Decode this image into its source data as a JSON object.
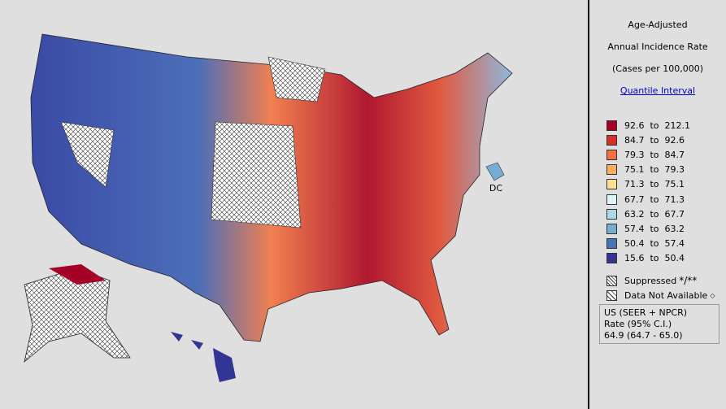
{
  "title_lines": [
    "Age-Adjusted",
    "Annual Incidence Rate",
    "(Cases per 100,000)"
  ],
  "link": "Quantile Interval",
  "dc_label": "DC",
  "legend": [
    {
      "label": "92.6  to  212.1",
      "color": "#a50026"
    },
    {
      "label": "84.7  to  92.6",
      "color": "#d73027"
    },
    {
      "label": "79.3  to  84.7",
      "color": "#f46d43"
    },
    {
      "label": "75.1  to  79.3",
      "color": "#fdae61"
    },
    {
      "label": "71.3  to  75.1",
      "color": "#fee090"
    },
    {
      "label": "67.7  to  71.3",
      "color": "#e0f3f8"
    },
    {
      "label": "63.2  to  67.7",
      "color": "#abd9e9"
    },
    {
      "label": "57.4  to  63.2",
      "color": "#74add1"
    },
    {
      "label": "50.4  to  57.4",
      "color": "#4575b4"
    },
    {
      "label": "15.6  to  50.4",
      "color": "#313695"
    }
  ],
  "suppressed": "Suppressed",
  "suppressed_mark": "*/**",
  "not_available": "Data Not Available",
  "not_available_mark": "◇",
  "us_box": [
    "US (SEER + NPCR)",
    "Rate (95% C.I.)",
    "64.9  (64.7 - 65.0)"
  ]
}
